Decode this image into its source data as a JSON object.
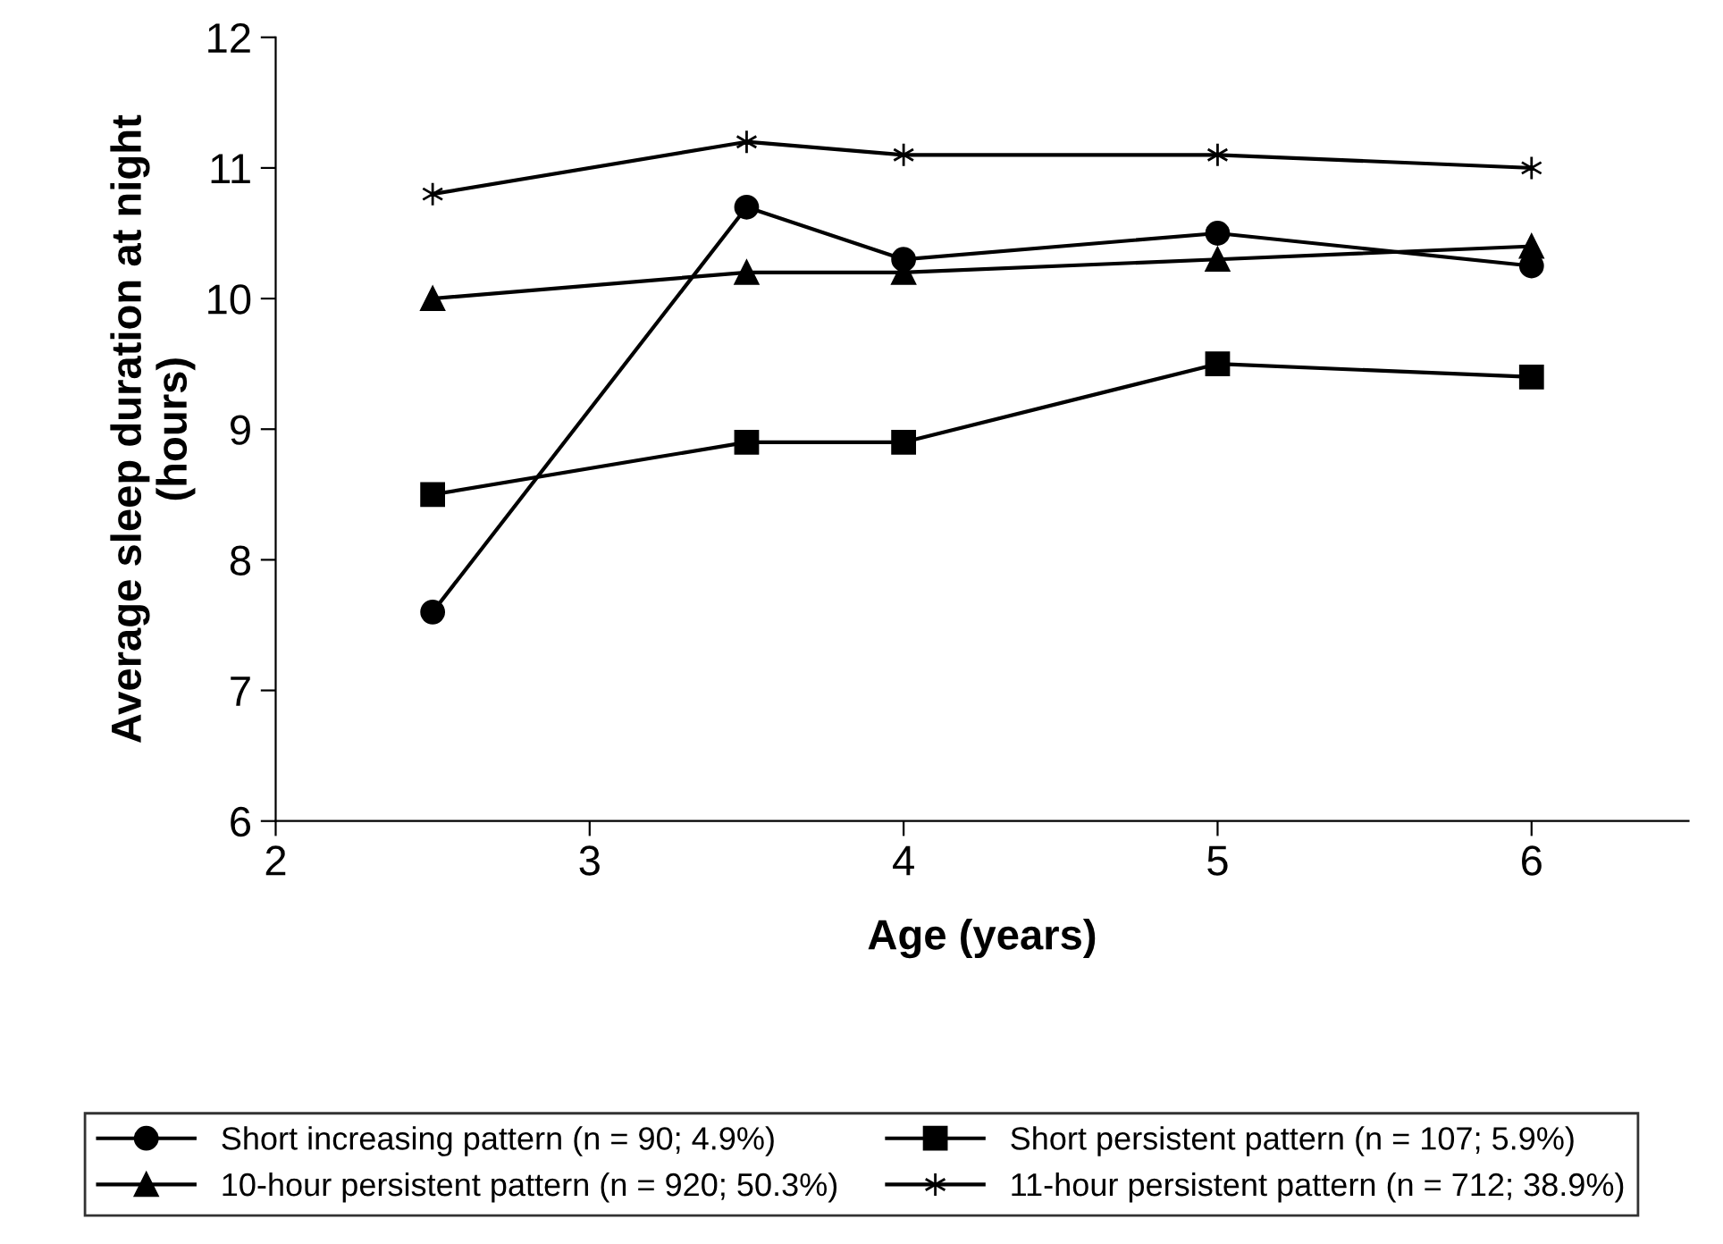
{
  "chart_data": {
    "type": "line",
    "xlabel": "Age (years)",
    "ylabel": "Average sleep duration at night\n(hours)",
    "x": [
      2.5,
      3.5,
      4,
      5,
      6
    ],
    "series": [
      {
        "name": "Short increasing pattern (n = 90; 4.9%)",
        "color": "#000000",
        "marker": "circle",
        "values": [
          7.6,
          10.7,
          10.3,
          10.5,
          10.25
        ]
      },
      {
        "name": "Short persistent pattern (n = 107; 5.9%)",
        "color": "#000000",
        "marker": "square",
        "values": [
          8.5,
          8.9,
          8.9,
          9.5,
          9.4
        ]
      },
      {
        "name": "10-hour persistent pattern (n = 920; 50.3%)",
        "color": "#000000",
        "marker": "triangle",
        "values": [
          10.0,
          10.2,
          10.2,
          10.3,
          10.4
        ]
      },
      {
        "name": "11-hour persistent pattern (n = 712; 38.9%)",
        "color": "#000000",
        "marker": "cross",
        "values": [
          10.8,
          11.2,
          11.1,
          11.1,
          11.0
        ]
      }
    ],
    "xlim": [
      2,
      6.5
    ],
    "xticks": [
      2,
      3,
      4,
      5,
      6
    ],
    "ylim": [
      6,
      12
    ],
    "yticks": [
      6,
      7,
      8,
      9,
      10,
      11,
      12
    ],
    "grid": false,
    "legend": "bottom",
    "line_style": "solid"
  }
}
